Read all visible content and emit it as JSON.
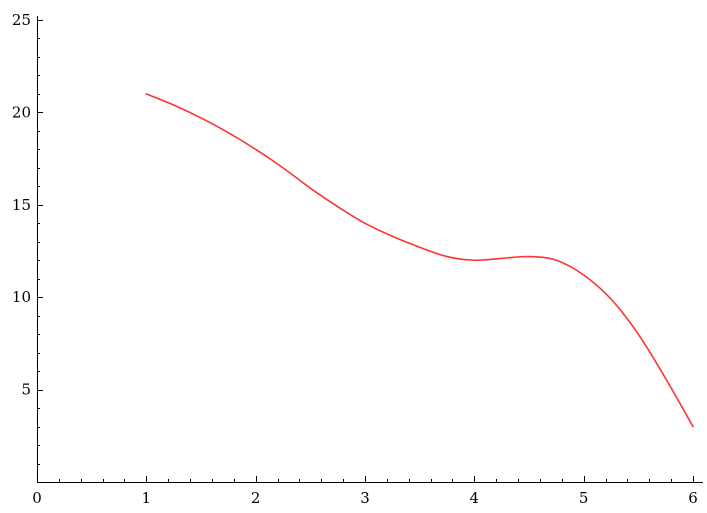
{
  "chart_data": {
    "type": "line",
    "title": "",
    "xlabel": "",
    "ylabel": "",
    "xlim": [
      0,
      6
    ],
    "ylim": [
      0,
      25
    ],
    "x_ticks": [
      {
        "value": 0,
        "label": "0"
      },
      {
        "value": 1,
        "label": "1"
      },
      {
        "value": 2,
        "label": "2"
      },
      {
        "value": 3,
        "label": "3"
      },
      {
        "value": 4,
        "label": "4"
      },
      {
        "value": 5,
        "label": "5"
      },
      {
        "value": 6,
        "label": "6"
      }
    ],
    "y_ticks": [
      {
        "value": 5,
        "label": "5"
      },
      {
        "value": 10,
        "label": "10"
      },
      {
        "value": 15,
        "label": "15"
      },
      {
        "value": 20,
        "label": "20"
      },
      {
        "value": 25,
        "label": "25"
      }
    ],
    "grid": false,
    "series": [
      {
        "color": "#ff3333",
        "points": [
          {
            "x": 1.0,
            "y": 21.0
          },
          {
            "x": 1.25,
            "y": 20.4
          },
          {
            "x": 1.5,
            "y": 19.7
          },
          {
            "x": 1.75,
            "y": 18.9
          },
          {
            "x": 2.0,
            "y": 18.0
          },
          {
            "x": 2.25,
            "y": 17.0
          },
          {
            "x": 2.5,
            "y": 15.9
          },
          {
            "x": 2.75,
            "y": 14.9
          },
          {
            "x": 3.0,
            "y": 14.0
          },
          {
            "x": 3.25,
            "y": 13.3
          },
          {
            "x": 3.5,
            "y": 12.7
          },
          {
            "x": 3.75,
            "y": 12.2
          },
          {
            "x": 4.0,
            "y": 12.0
          },
          {
            "x": 4.25,
            "y": 12.1
          },
          {
            "x": 4.5,
            "y": 12.2
          },
          {
            "x": 4.75,
            "y": 12.0
          },
          {
            "x": 5.0,
            "y": 11.2
          },
          {
            "x": 5.25,
            "y": 9.9
          },
          {
            "x": 5.5,
            "y": 8.0
          },
          {
            "x": 5.75,
            "y": 5.6
          },
          {
            "x": 6.0,
            "y": 3.0
          }
        ]
      }
    ]
  }
}
